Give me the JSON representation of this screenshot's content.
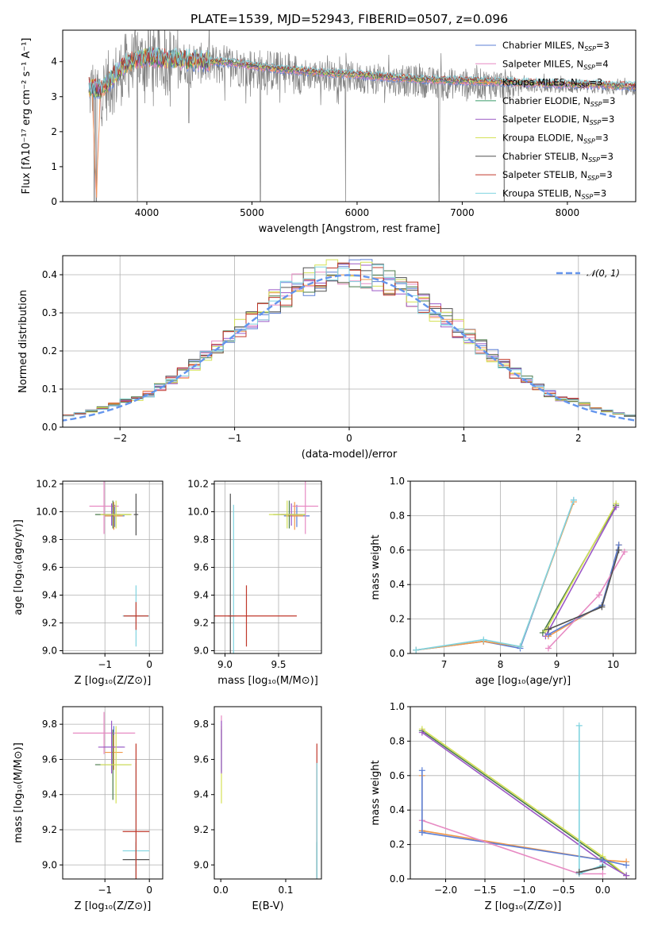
{
  "figure": {
    "title": "PLATE=1539, MJD=52943, FIBERID=0507, z=0.096"
  },
  "colors": {
    "chabrier_miles": "#5b7fd6",
    "salpeter_miles": "#f2994a",
    "kroupa_miles": "#3a9a6a",
    "chabrier_elodie": "#4a7a4a",
    "salpeter_elodie": "#9b59c6",
    "kroupa_elodie": "#d4e157",
    "chabrier_stelib": "#505050",
    "salpeter_stelib": "#c0392b",
    "kroupa_stelib": "#80d4e0",
    "pink": "#e78ac3",
    "data_gray": "#808080",
    "normal_curve": "#6495ed"
  },
  "chart_data": [
    {
      "id": "spectrum",
      "type": "line",
      "xlabel": "wavelength [Angstrom, rest frame]",
      "ylabel": "Flux [fλ10⁻¹⁷ erg cm⁻² s⁻¹ A⁻¹]",
      "xlim": [
        3200,
        8650
      ],
      "ylim": [
        0,
        4.9
      ],
      "xticks": [
        4000,
        5000,
        6000,
        7000,
        8000
      ],
      "yticks": [
        0,
        1,
        2,
        3,
        4
      ],
      "legend_position": "top-right",
      "series": [
        {
          "name": "Chabrier MILES, N",
          "sub": "SSP",
          "suffix": "=3",
          "color_key": "chabrier_miles"
        },
        {
          "name": "Salpeter MILES, N",
          "sub": "SSP",
          "suffix": "=4",
          "color_key": "pink"
        },
        {
          "name": "Kroupa MILES, N",
          "sub": "SSP",
          "suffix": "=3",
          "color_key": "salpeter_miles"
        },
        {
          "name": "Chabrier ELODIE, N",
          "sub": "SSP",
          "suffix": "=3",
          "color_key": "kroupa_miles"
        },
        {
          "name": "Salpeter ELODIE, N",
          "sub": "SSP",
          "suffix": "=3",
          "color_key": "salpeter_elodie"
        },
        {
          "name": "Kroupa ELODIE, N",
          "sub": "SSP",
          "suffix": "=3",
          "color_key": "kroupa_elodie"
        },
        {
          "name": "Chabrier STELIB, N",
          "sub": "SSP",
          "suffix": "=3",
          "color_key": "chabrier_stelib"
        },
        {
          "name": "Salpeter STELIB, N",
          "sub": "SSP",
          "suffix": "=3",
          "color_key": "salpeter_stelib"
        },
        {
          "name": "Kroupa STELIB, N",
          "sub": "SSP",
          "suffix": "=3",
          "color_key": "kroupa_stelib"
        }
      ],
      "continuum": [
        [
          3450,
          3.2
        ],
        [
          3560,
          3.1
        ],
        [
          3700,
          3.55
        ],
        [
          3820,
          3.9
        ],
        [
          4000,
          4.05
        ],
        [
          4200,
          4.0
        ],
        [
          4500,
          3.95
        ],
        [
          4800,
          3.9
        ],
        [
          5000,
          3.8
        ],
        [
          5300,
          3.7
        ],
        [
          5600,
          3.62
        ],
        [
          6000,
          3.55
        ],
        [
          6300,
          3.48
        ],
        [
          6600,
          3.42
        ],
        [
          6900,
          3.38
        ],
        [
          7200,
          3.36
        ],
        [
          7500,
          3.33
        ],
        [
          7800,
          3.3
        ],
        [
          8100,
          3.28
        ],
        [
          8400,
          3.25
        ],
        [
          8650,
          3.22
        ]
      ],
      "dips": [
        [
          3500,
          0.0
        ],
        [
          3520,
          0.0
        ],
        [
          3910,
          0.0
        ],
        [
          4400,
          2.25
        ],
        [
          5080,
          0.0
        ],
        [
          5890,
          0.0
        ],
        [
          6780,
          0.0
        ],
        [
          7400,
          0.0
        ]
      ]
    },
    {
      "id": "residuals",
      "type": "histogram",
      "xlabel": "(data-model)/error",
      "ylabel": "Normed distribution",
      "xlim": [
        -2.5,
        2.5
      ],
      "ylim": [
        0,
        0.45
      ],
      "xticks": [
        -2,
        -1,
        0,
        1,
        2
      ],
      "yticks": [
        0.0,
        0.1,
        0.2,
        0.3,
        0.4
      ],
      "grid": true,
      "legend_position": "top-right",
      "normal_curve_label": "𝒩(0, 1)",
      "bin_width": 0.1
    },
    {
      "id": "age_vs_Z",
      "type": "scatter",
      "xlabel": "Z [log₁₀(Z/Z⊙)]",
      "ylabel": "age  [log₁₀(age/yr)]",
      "xlim": [
        -1.95,
        0.3
      ],
      "ylim": [
        8.98,
        10.22
      ],
      "xticks": [
        -1,
        0
      ],
      "yticks": [
        9.0,
        9.2,
        9.4,
        9.6,
        9.8,
        10.0,
        10.2
      ],
      "grid": true,
      "points": [
        {
          "x": -0.78,
          "y": 9.97,
          "xerr": 0.22,
          "yerr": 0.08,
          "color_key": "chabrier_miles"
        },
        {
          "x": -1.02,
          "y": 10.04,
          "xerr": 0.33,
          "yerr": 0.2,
          "color_key": "pink"
        },
        {
          "x": -0.8,
          "y": 9.97,
          "xerr": 0.2,
          "yerr": 0.1,
          "color_key": "salpeter_miles"
        },
        {
          "x": -0.82,
          "y": 9.98,
          "xerr": 0.4,
          "yerr": 0.1,
          "color_key": "chabrier_elodie"
        },
        {
          "x": -0.85,
          "y": 9.98,
          "xerr": 0.2,
          "yerr": 0.08,
          "color_key": "salpeter_elodie"
        },
        {
          "x": -0.75,
          "y": 9.98,
          "xerr": 0.35,
          "yerr": 0.1,
          "color_key": "kroupa_elodie"
        },
        {
          "x": -0.3,
          "y": 9.98,
          "xerr": 0.05,
          "yerr": 0.15,
          "color_key": "chabrier_stelib"
        },
        {
          "x": -0.3,
          "y": 9.25,
          "xerr": 0.3,
          "yerr": 0.22,
          "color_key": "kroupa_stelib"
        },
        {
          "x": -0.3,
          "y": 9.25,
          "xerr": 0.28,
          "yerr": 0.1,
          "color_key": "salpeter_stelib"
        }
      ]
    },
    {
      "id": "age_vs_mass",
      "type": "scatter",
      "xlabel": "mass [log₁₀(M/M⊙)]",
      "ylabel": "",
      "xlim": [
        8.9,
        9.9
      ],
      "ylim": [
        8.98,
        10.22
      ],
      "xticks": [
        9.0,
        9.5
      ],
      "yticks": [
        9.0,
        9.2,
        9.4,
        9.6,
        9.8,
        10.0,
        10.2
      ],
      "grid": true,
      "points": [
        {
          "x": 9.67,
          "y": 9.97,
          "xerr": 0.12,
          "yerr": 0.08,
          "color_key": "chabrier_miles"
        },
        {
          "x": 9.75,
          "y": 10.04,
          "xerr": 0.12,
          "yerr": 0.2,
          "color_key": "pink"
        },
        {
          "x": 9.65,
          "y": 9.97,
          "xerr": 0.08,
          "yerr": 0.1,
          "color_key": "salpeter_miles"
        },
        {
          "x": 9.6,
          "y": 9.98,
          "xerr": 0.15,
          "yerr": 0.1,
          "color_key": "chabrier_elodie"
        },
        {
          "x": 9.62,
          "y": 9.98,
          "xerr": 0.1,
          "yerr": 0.08,
          "color_key": "salpeter_elodie"
        },
        {
          "x": 9.58,
          "y": 9.98,
          "xerr": 0.17,
          "yerr": 0.1,
          "color_key": "kroupa_elodie"
        },
        {
          "x": 9.05,
          "y": 9.25,
          "xerr": 0.02,
          "yerr": 0.88,
          "color_key": "chabrier_stelib"
        },
        {
          "x": 9.08,
          "y": 9.25,
          "xerr": 0.02,
          "yerr": 0.8,
          "color_key": "kroupa_stelib"
        },
        {
          "x": 9.2,
          "y": 9.25,
          "xerr": 0.47,
          "yerr": 0.22,
          "color_key": "salpeter_stelib"
        }
      ]
    },
    {
      "id": "massweight_vs_age",
      "type": "line",
      "xlabel": "age  [log₁₀(age/yr)]",
      "ylabel": "mass weight",
      "xlim": [
        6.4,
        10.4
      ],
      "ylim": [
        0,
        1
      ],
      "xticks": [
        7,
        8,
        9,
        10
      ],
      "yticks": [
        0.0,
        0.2,
        0.4,
        0.6,
        0.8,
        1.0
      ],
      "grid": true,
      "series": [
        {
          "color_key": "chabrier_miles",
          "x": [
            6.5,
            7.7,
            8.35,
            9.3
          ],
          "y": [
            0.02,
            0.07,
            0.03,
            0.89
          ]
        },
        {
          "color_key": "salpeter_miles",
          "x": [
            6.5,
            7.7,
            8.35,
            9.3
          ],
          "y": [
            0.02,
            0.07,
            0.04,
            0.88
          ]
        },
        {
          "color_key": "kroupa_stelib",
          "x": [
            6.5,
            7.7,
            8.35,
            9.3
          ],
          "y": [
            0.02,
            0.08,
            0.04,
            0.89
          ]
        },
        {
          "color_key": "chabrier_elodie",
          "x": [
            8.75,
            10.05
          ],
          "y": [
            0.12,
            0.86
          ]
        },
        {
          "color_key": "kroupa_elodie",
          "x": [
            8.8,
            10.05
          ],
          "y": [
            0.13,
            0.87
          ]
        },
        {
          "color_key": "salpeter_elodie",
          "x": [
            8.8,
            10.05
          ],
          "y": [
            0.1,
            0.85
          ]
        },
        {
          "color_key": "salpeter_miles",
          "x": [
            8.85,
            9.8,
            10.1
          ],
          "y": [
            0.1,
            0.28,
            0.63
          ]
        },
        {
          "color_key": "chabrier_miles",
          "x": [
            8.85,
            9.8,
            10.1
          ],
          "y": [
            0.11,
            0.28,
            0.63
          ]
        },
        {
          "color_key": "pink",
          "x": [
            8.85,
            9.75,
            10.2
          ],
          "y": [
            0.03,
            0.34,
            0.59
          ]
        },
        {
          "color_key": "chabrier_stelib",
          "x": [
            8.85,
            9.8,
            10.1
          ],
          "y": [
            0.14,
            0.27,
            0.6
          ]
        }
      ]
    },
    {
      "id": "mass_vs_Z",
      "type": "scatter",
      "xlabel": "Z [log₁₀(Z/Z⊙)]",
      "ylabel": "mass [log₁₀(M/M⊙)]",
      "xlim": [
        -1.95,
        0.3
      ],
      "ylim": [
        8.92,
        9.9
      ],
      "xticks": [
        -1,
        0
      ],
      "yticks": [
        9.0,
        9.2,
        9.4,
        9.6,
        9.8
      ],
      "grid": true,
      "points": [
        {
          "x": -0.8,
          "y": 9.67,
          "xerr": 0.22,
          "yerr": 0.12,
          "color_key": "chabrier_miles"
        },
        {
          "x": -1.02,
          "y": 9.75,
          "xerr": 0.7,
          "yerr": 0.12,
          "color_key": "pink"
        },
        {
          "x": -0.8,
          "y": 9.64,
          "xerr": 0.2,
          "yerr": 0.1,
          "color_key": "salpeter_miles"
        },
        {
          "x": -0.82,
          "y": 9.57,
          "xerr": 0.4,
          "yerr": 0.2,
          "color_key": "chabrier_elodie"
        },
        {
          "x": -0.85,
          "y": 9.67,
          "xerr": 0.3,
          "yerr": 0.15,
          "color_key": "salpeter_elodie"
        },
        {
          "x": -0.75,
          "y": 9.57,
          "xerr": 0.35,
          "yerr": 0.22,
          "color_key": "kroupa_elodie"
        },
        {
          "x": -0.3,
          "y": 9.03,
          "xerr": 0.3,
          "yerr": 0.1,
          "color_key": "chabrier_stelib"
        },
        {
          "x": -0.3,
          "y": 9.08,
          "xerr": 0.3,
          "yerr": 0.5,
          "color_key": "kroupa_stelib"
        },
        {
          "x": -0.3,
          "y": 9.19,
          "xerr": 0.3,
          "yerr": 0.5,
          "color_key": "salpeter_stelib"
        }
      ]
    },
    {
      "id": "mass_vs_ebv",
      "type": "scatter",
      "xlabel": "E(B-V)",
      "ylabel": "",
      "xlim": [
        -0.01,
        0.155
      ],
      "ylim": [
        8.92,
        9.9
      ],
      "xticks": [
        0.0,
        0.1
      ],
      "yticks": [
        9.0,
        9.2,
        9.4,
        9.6,
        9.8
      ],
      "grid": false,
      "points": [
        {
          "x": 0.001,
          "y": 9.75,
          "xerr": 0,
          "yerr": 0.1,
          "color_key": "pink"
        },
        {
          "x": 0.001,
          "y": 9.65,
          "xerr": 0,
          "yerr": 0.12,
          "color_key": "chabrier_miles"
        },
        {
          "x": 0.001,
          "y": 9.57,
          "xerr": 0,
          "yerr": 0.22,
          "color_key": "kroupa_elodie"
        },
        {
          "x": 0.001,
          "y": 9.67,
          "xerr": 0,
          "yerr": 0.15,
          "color_key": "salpeter_elodie"
        },
        {
          "x": 0.148,
          "y": 9.19,
          "xerr": 0,
          "yerr": 0.5,
          "color_key": "salpeter_stelib"
        },
        {
          "x": 0.148,
          "y": 9.03,
          "xerr": 0,
          "yerr": 0.1,
          "color_key": "chabrier_stelib"
        },
        {
          "x": 0.148,
          "y": 9.08,
          "xerr": 0,
          "yerr": 0.5,
          "color_key": "kroupa_stelib"
        }
      ]
    },
    {
      "id": "massweight_vs_Z",
      "type": "line",
      "xlabel": "Z [log₁₀(Z/Z⊙)]",
      "ylabel": "mass weight",
      "xlim": [
        -2.45,
        0.42
      ],
      "ylim": [
        0,
        1
      ],
      "xticks": [
        -2.0,
        -1.5,
        -1.0,
        -0.5,
        0.0
      ],
      "yticks": [
        0.0,
        0.2,
        0.4,
        0.6,
        0.8,
        1.0
      ],
      "grid": true,
      "series": [
        {
          "color_key": "chabrier_elodie",
          "x": [
            -2.3,
            0.0,
            0.3
          ],
          "y": [
            0.86,
            0.12,
            0.02
          ]
        },
        {
          "color_key": "kroupa_elodie",
          "x": [
            -2.3,
            0.0,
            0.3
          ],
          "y": [
            0.87,
            0.13,
            0.02
          ]
        },
        {
          "color_key": "salpeter_elodie",
          "x": [
            -2.3,
            0.0,
            0.3
          ],
          "y": [
            0.85,
            0.1,
            0.02
          ]
        },
        {
          "color_key": "salpeter_miles",
          "x": [
            -2.3,
            0.0,
            0.3
          ],
          "y": [
            0.28,
            0.11,
            0.1
          ]
        },
        {
          "color_key": "chabrier_miles",
          "x": [
            -2.3,
            0.0,
            0.3
          ],
          "y": [
            0.27,
            0.11,
            0.08
          ]
        },
        {
          "color_key": "pink",
          "x": [
            -2.3,
            -0.3,
            0.0
          ],
          "y": [
            0.34,
            0.03,
            0.03
          ]
        },
        {
          "color_key": "salpeter_miles",
          "x": [
            -2.3,
            -2.3
          ],
          "y": [
            0.28,
            0.6
          ]
        },
        {
          "color_key": "chabrier_miles",
          "x": [
            -2.3,
            -2.3
          ],
          "y": [
            0.27,
            0.63
          ]
        },
        {
          "color_key": "kroupa_stelib",
          "x": [
            -0.3,
            -0.3,
            0.0
          ],
          "y": [
            0.89,
            0.03,
            0.08
          ]
        },
        {
          "color_key": "chabrier_stelib",
          "x": [
            -0.3,
            0.0
          ],
          "y": [
            0.04,
            0.07
          ]
        }
      ]
    }
  ]
}
